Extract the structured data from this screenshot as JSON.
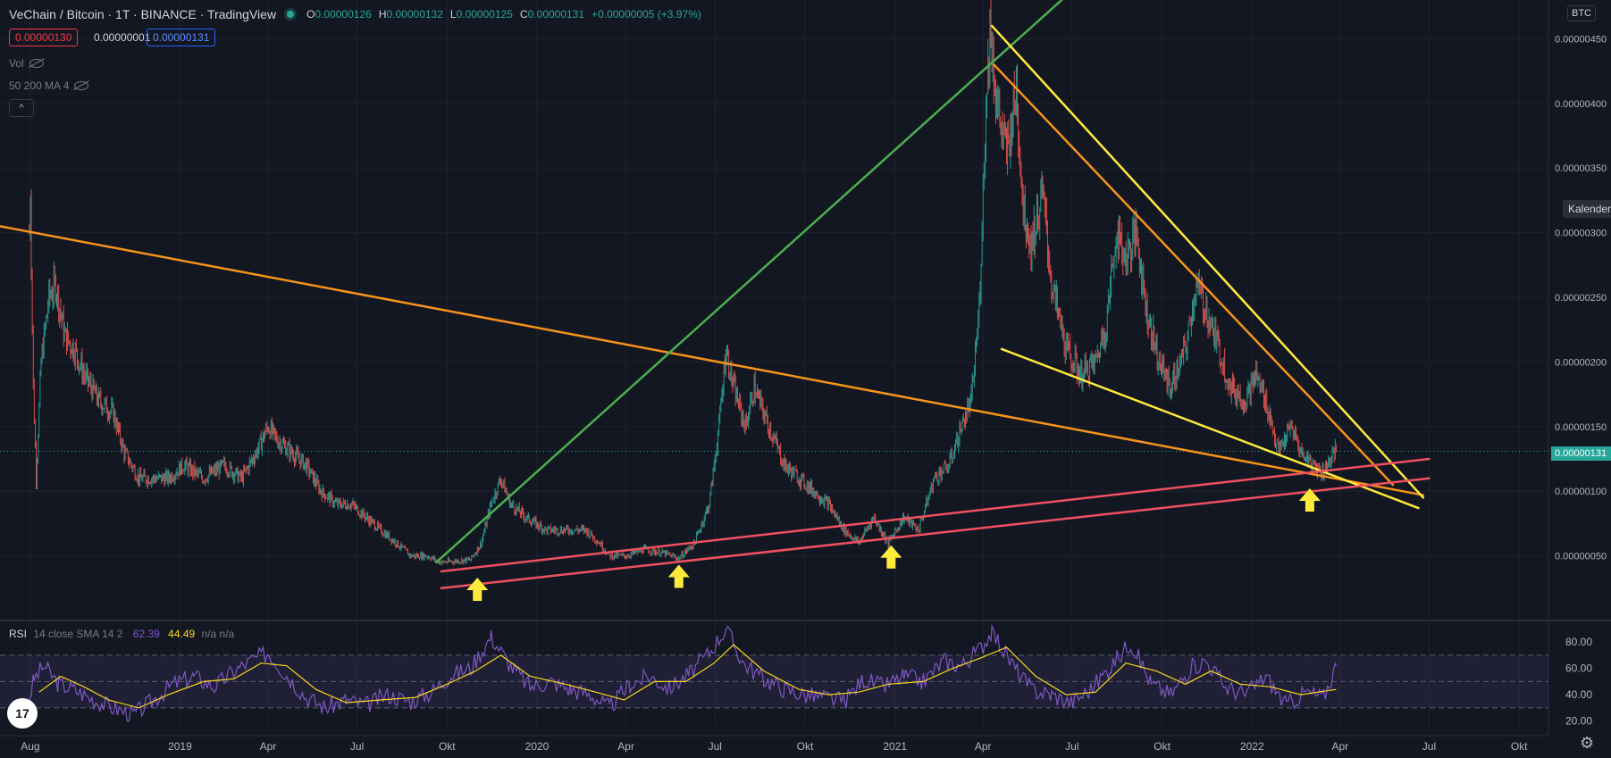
{
  "header": {
    "symbol": "VeChain / Bitcoin · 1T · BINANCE · TradingView",
    "open_label": "O",
    "open": "0.00000126",
    "high_label": "H",
    "high": "0.00000132",
    "low_label": "L",
    "low": "0.00000125",
    "close_label": "C",
    "close": "0.00000131",
    "change": "+0.00000005 (+3.97%)"
  },
  "quote": {
    "bid": "0.00000130",
    "spread": "0.00000001",
    "ask": "0.00000131"
  },
  "indicators": {
    "vol": "Vol",
    "ma": "50 200 MA 4",
    "collapse": "^"
  },
  "rsi_header": {
    "name": "RSI",
    "params": "14 close SMA 14 2",
    "rsi": "62.39",
    "ma": "44.49",
    "na": "n/a n/a"
  },
  "price_axis": {
    "currency": "BTC",
    "current": "0.00000131",
    "calendar_button": "Kalender"
  },
  "tv_logo": "17",
  "settings_icon": "gear-icon",
  "colors": {
    "up": "#26a69a",
    "down": "#ef5350",
    "orange": "#f7931a",
    "yellow": "#ffeb3b",
    "green": "#4caf50",
    "red": "#f05060",
    "rsi": "#7e57c2",
    "rsi_ma": "#f9d71c"
  },
  "chart_data": {
    "type": "line",
    "xlim": [
      "2018-07-01",
      "2022-10-31"
    ],
    "ylim": [
      0.0,
      4.8e-06
    ],
    "x_ticks": [
      {
        "date": "2018-08-01",
        "label": "Aug"
      },
      {
        "date": "2019-01-01",
        "label": "2019"
      },
      {
        "date": "2019-04-01",
        "label": "Apr"
      },
      {
        "date": "2019-07-01",
        "label": "Jul"
      },
      {
        "date": "2019-10-01",
        "label": "Okt"
      },
      {
        "date": "2020-01-01",
        "label": "2020"
      },
      {
        "date": "2020-04-01",
        "label": "Apr"
      },
      {
        "date": "2020-07-01",
        "label": "Jul"
      },
      {
        "date": "2020-10-01",
        "label": "Okt"
      },
      {
        "date": "2021-01-01",
        "label": "2021"
      },
      {
        "date": "2021-04-01",
        "label": "Apr"
      },
      {
        "date": "2021-07-01",
        "label": "Jul"
      },
      {
        "date": "2021-10-01",
        "label": "Okt"
      },
      {
        "date": "2022-01-01",
        "label": "2022"
      },
      {
        "date": "2022-04-01",
        "label": "Apr"
      },
      {
        "date": "2022-07-01",
        "label": "Jul"
      },
      {
        "date": "2022-10-01",
        "label": "Okt"
      }
    ],
    "y_ticks": [
      {
        "value": 4.5e-06,
        "label": "0.00000450"
      },
      {
        "value": 4e-06,
        "label": "0.00000400"
      },
      {
        "value": 3.5e-06,
        "label": "0.00000350"
      },
      {
        "value": 3e-06,
        "label": "0.00000300"
      },
      {
        "value": 2.5e-06,
        "label": "0.00000250"
      },
      {
        "value": 2e-06,
        "label": "0.00000200"
      },
      {
        "value": 1.5e-06,
        "label": "0.00000150"
      },
      {
        "value": 1e-06,
        "label": "0.00000100"
      },
      {
        "value": 5e-07,
        "label": "0.00000050"
      }
    ],
    "current_price": 1.31e-06,
    "price_series": [
      [
        "2018-07-31",
        3e-06
      ],
      [
        "2018-08-01",
        3.3e-06
      ],
      [
        "2018-08-04",
        1.8e-06
      ],
      [
        "2018-08-07",
        1.1e-06
      ],
      [
        "2018-08-12",
        2e-06
      ],
      [
        "2018-08-20",
        2.5e-06
      ],
      [
        "2018-08-27",
        2.6e-06
      ],
      [
        "2018-09-05",
        2.2e-06
      ],
      [
        "2018-09-15",
        2.1e-06
      ],
      [
        "2018-09-25",
        1.9e-06
      ],
      [
        "2018-10-10",
        1.7e-06
      ],
      [
        "2018-10-25",
        1.6e-06
      ],
      [
        "2018-11-05",
        1.3e-06
      ],
      [
        "2018-11-20",
        1.1e-06
      ],
      [
        "2018-12-05",
        1.1e-06
      ],
      [
        "2018-12-20",
        1.1e-06
      ],
      [
        "2019-01-05",
        1.2e-06
      ],
      [
        "2019-01-25",
        1.1e-06
      ],
      [
        "2019-02-15",
        1.2e-06
      ],
      [
        "2019-03-05",
        1.1e-06
      ],
      [
        "2019-03-20",
        1.3e-06
      ],
      [
        "2019-04-01",
        1.5e-06
      ],
      [
        "2019-04-10",
        1.4e-06
      ],
      [
        "2019-04-25",
        1.3e-06
      ],
      [
        "2019-05-10",
        1.2e-06
      ],
      [
        "2019-05-25",
        1e-06
      ],
      [
        "2019-06-10",
        9e-07
      ],
      [
        "2019-06-25",
        9e-07
      ],
      [
        "2019-07-10",
        8e-07
      ],
      [
        "2019-07-25",
        7e-07
      ],
      [
        "2019-08-10",
        6e-07
      ],
      [
        "2019-08-25",
        5e-07
      ],
      [
        "2019-09-10",
        5e-07
      ],
      [
        "2019-09-25",
        4.5e-07
      ],
      [
        "2019-10-10",
        4.6e-07
      ],
      [
        "2019-10-25",
        4.7e-07
      ],
      [
        "2019-11-05",
        6e-07
      ],
      [
        "2019-11-15",
        9e-07
      ],
      [
        "2019-11-25",
        1.1e-06
      ],
      [
        "2019-12-05",
        9e-07
      ],
      [
        "2019-12-20",
        8e-07
      ],
      [
        "2020-01-10",
        7e-07
      ],
      [
        "2020-02-01",
        7e-07
      ],
      [
        "2020-02-20",
        7e-07
      ],
      [
        "2020-03-05",
        6e-07
      ],
      [
        "2020-03-15",
        5e-07
      ],
      [
        "2020-04-01",
        5e-07
      ],
      [
        "2020-04-20",
        5.5e-07
      ],
      [
        "2020-05-10",
        5.2e-07
      ],
      [
        "2020-05-25",
        4.8e-07
      ],
      [
        "2020-06-10",
        6e-07
      ],
      [
        "2020-06-25",
        9e-07
      ],
      [
        "2020-07-05",
        1.5e-06
      ],
      [
        "2020-07-12",
        2.1e-06
      ],
      [
        "2020-07-20",
        1.8e-06
      ],
      [
        "2020-08-01",
        1.5e-06
      ],
      [
        "2020-08-10",
        1.8e-06
      ],
      [
        "2020-08-25",
        1.5e-06
      ],
      [
        "2020-09-10",
        1.2e-06
      ],
      [
        "2020-09-25",
        1.1e-06
      ],
      [
        "2020-10-10",
        1e-06
      ],
      [
        "2020-10-25",
        9e-07
      ],
      [
        "2020-11-10",
        7e-07
      ],
      [
        "2020-11-25",
        6e-07
      ],
      [
        "2020-12-10",
        8e-07
      ],
      [
        "2020-12-25",
        6e-07
      ],
      [
        "2021-01-10",
        8e-07
      ],
      [
        "2021-01-25",
        7e-07
      ],
      [
        "2021-02-10",
        1.1e-06
      ],
      [
        "2021-02-25",
        1.2e-06
      ],
      [
        "2021-03-10",
        1.5e-06
      ],
      [
        "2021-03-20",
        1.7e-06
      ],
      [
        "2021-03-28",
        2.4e-06
      ],
      [
        "2021-04-03",
        3.8e-06
      ],
      [
        "2021-04-08",
        4.6e-06
      ],
      [
        "2021-04-15",
        4e-06
      ],
      [
        "2021-04-25",
        3.6e-06
      ],
      [
        "2021-05-05",
        4.1e-06
      ],
      [
        "2021-05-12",
        3.2e-06
      ],
      [
        "2021-05-20",
        2.9e-06
      ],
      [
        "2021-06-01",
        3.3e-06
      ],
      [
        "2021-06-10",
        2.6e-06
      ],
      [
        "2021-06-25",
        2.1e-06
      ],
      [
        "2021-07-10",
        1.9e-06
      ],
      [
        "2021-07-25",
        2e-06
      ],
      [
        "2021-08-05",
        2.3e-06
      ],
      [
        "2021-08-15",
        3e-06
      ],
      [
        "2021-08-25",
        2.8e-06
      ],
      [
        "2021-09-05",
        3e-06
      ],
      [
        "2021-09-15",
        2.4e-06
      ],
      [
        "2021-09-28",
        2e-06
      ],
      [
        "2021-10-10",
        1.8e-06
      ],
      [
        "2021-10-25",
        2.1e-06
      ],
      [
        "2021-11-05",
        2.6e-06
      ],
      [
        "2021-11-15",
        2.4e-06
      ],
      [
        "2021-11-28",
        2.1e-06
      ],
      [
        "2021-12-10",
        1.8e-06
      ],
      [
        "2021-12-25",
        1.7e-06
      ],
      [
        "2022-01-05",
        1.9e-06
      ],
      [
        "2022-01-15",
        1.7e-06
      ],
      [
        "2022-01-28",
        1.3e-06
      ],
      [
        "2022-02-10",
        1.5e-06
      ],
      [
        "2022-02-20",
        1.3e-06
      ],
      [
        "2022-03-05",
        1.2e-06
      ],
      [
        "2022-03-15",
        1.15e-06
      ],
      [
        "2022-03-22",
        1.25e-06
      ],
      [
        "2022-03-28",
        1.31e-06
      ]
    ],
    "trendlines": [
      {
        "color": "orange",
        "from": [
          "2018-07-01",
          3.05e-06
        ],
        "to": [
          "2022-06-25",
          9.7e-07
        ]
      },
      {
        "color": "green",
        "from": [
          "2019-09-20",
          4.5e-07
        ],
        "to": [
          "2021-07-05",
          4.9e-06
        ]
      },
      {
        "color": "orange",
        "from": [
          "2021-04-12",
          4.3e-06
        ],
        "to": [
          "2022-05-25",
          1.05e-06
        ]
      },
      {
        "color": "yellow",
        "from": [
          "2021-04-10",
          4.6e-06
        ],
        "to": [
          "2022-06-25",
          9.5e-07
        ]
      },
      {
        "color": "yellow",
        "from": [
          "2021-04-20",
          2.1e-06
        ],
        "to": [
          "2022-06-20",
          8.7e-07
        ]
      },
      {
        "color": "red",
        "from": [
          "2019-09-25",
          3.8e-07
        ],
        "to": [
          "2022-07-01",
          1.25e-06
        ]
      },
      {
        "color": "red",
        "from": [
          "2019-09-25",
          2.5e-07
        ],
        "to": [
          "2022-07-01",
          1.1e-06
        ]
      }
    ],
    "arrows": [
      {
        "date": "2019-11-01",
        "value": 1.8e-07
      },
      {
        "date": "2020-05-25",
        "value": 2.8e-07
      },
      {
        "date": "2020-12-28",
        "value": 4.3e-07
      },
      {
        "date": "2022-03-01",
        "value": 8.7e-07
      }
    ],
    "rsi": {
      "ylim": [
        15,
        95
      ],
      "y_ticks": [
        {
          "value": 80,
          "label": "80.00"
        },
        {
          "value": 60,
          "label": "60.00"
        },
        {
          "value": 40,
          "label": "40.00"
        },
        {
          "value": 20,
          "label": "20.00"
        }
      ],
      "upper_band": 70,
      "mid_band": 50,
      "lower_band": 30,
      "rsi_series": [
        [
          "2018-07-31",
          38
        ],
        [
          "2018-08-05",
          52
        ],
        [
          "2018-08-15",
          62
        ],
        [
          "2018-08-30",
          48
        ],
        [
          "2018-09-15",
          44
        ],
        [
          "2018-10-05",
          36
        ],
        [
          "2018-10-25",
          30
        ],
        [
          "2018-11-15",
          25
        ],
        [
          "2018-12-05",
          36
        ],
        [
          "2018-12-25",
          48
        ],
        [
          "2019-01-15",
          54
        ],
        [
          "2019-02-05",
          46
        ],
        [
          "2019-02-25",
          58
        ],
        [
          "2019-03-15",
          66
        ],
        [
          "2019-04-01",
          72
        ],
        [
          "2019-04-20",
          55
        ],
        [
          "2019-05-10",
          38
        ],
        [
          "2019-05-30",
          30
        ],
        [
          "2019-06-20",
          36
        ],
        [
          "2019-07-10",
          32
        ],
        [
          "2019-08-01",
          40
        ],
        [
          "2019-08-25",
          35
        ],
        [
          "2019-09-15",
          42
        ],
        [
          "2019-10-05",
          55
        ],
        [
          "2019-10-25",
          60
        ],
        [
          "2019-11-15",
          84
        ],
        [
          "2019-12-05",
          62
        ],
        [
          "2019-12-25",
          46
        ],
        [
          "2020-01-15",
          50
        ],
        [
          "2020-02-05",
          44
        ],
        [
          "2020-02-25",
          40
        ],
        [
          "2020-03-15",
          30
        ],
        [
          "2020-04-05",
          48
        ],
        [
          "2020-04-25",
          54
        ],
        [
          "2020-05-15",
          45
        ],
        [
          "2020-06-05",
          56
        ],
        [
          "2020-06-25",
          72
        ],
        [
          "2020-07-12",
          90
        ],
        [
          "2020-07-30",
          64
        ],
        [
          "2020-08-20",
          52
        ],
        [
          "2020-09-10",
          44
        ],
        [
          "2020-09-30",
          40
        ],
        [
          "2020-10-20",
          38
        ],
        [
          "2020-11-10",
          35
        ],
        [
          "2020-11-30",
          52
        ],
        [
          "2020-12-20",
          46
        ],
        [
          "2021-01-10",
          54
        ],
        [
          "2021-01-30",
          50
        ],
        [
          "2021-02-20",
          66
        ],
        [
          "2021-03-10",
          62
        ],
        [
          "2021-03-30",
          76
        ],
        [
          "2021-04-10",
          88
        ],
        [
          "2021-04-30",
          64
        ],
        [
          "2021-05-20",
          44
        ],
        [
          "2021-06-10",
          40
        ],
        [
          "2021-06-30",
          34
        ],
        [
          "2021-07-20",
          44
        ],
        [
          "2021-08-10",
          62
        ],
        [
          "2021-08-30",
          80
        ],
        [
          "2021-09-20",
          48
        ],
        [
          "2021-10-10",
          40
        ],
        [
          "2021-10-30",
          60
        ],
        [
          "2021-11-15",
          66
        ],
        [
          "2021-12-05",
          46
        ],
        [
          "2021-12-25",
          40
        ],
        [
          "2022-01-15",
          54
        ],
        [
          "2022-02-05",
          32
        ],
        [
          "2022-02-25",
          42
        ],
        [
          "2022-03-15",
          38
        ],
        [
          "2022-03-28",
          62
        ]
      ],
      "ma_series": [
        [
          "2018-08-10",
          42
        ],
        [
          "2018-09-01",
          54
        ],
        [
          "2018-09-25",
          46
        ],
        [
          "2018-10-20",
          36
        ],
        [
          "2018-11-20",
          30
        ],
        [
          "2018-12-20",
          40
        ],
        [
          "2019-01-25",
          50
        ],
        [
          "2019-02-25",
          52
        ],
        [
          "2019-03-25",
          64
        ],
        [
          "2019-04-20",
          62
        ],
        [
          "2019-05-20",
          44
        ],
        [
          "2019-06-20",
          34
        ],
        [
          "2019-07-25",
          36
        ],
        [
          "2019-08-30",
          38
        ],
        [
          "2019-10-01",
          48
        ],
        [
          "2019-10-30",
          58
        ],
        [
          "2019-11-25",
          70
        ],
        [
          "2019-12-25",
          54
        ],
        [
          "2020-01-30",
          48
        ],
        [
          "2020-03-01",
          42
        ],
        [
          "2020-03-30",
          36
        ],
        [
          "2020-04-30",
          50
        ],
        [
          "2020-06-01",
          50
        ],
        [
          "2020-06-30",
          64
        ],
        [
          "2020-07-20",
          78
        ],
        [
          "2020-08-20",
          58
        ],
        [
          "2020-09-25",
          44
        ],
        [
          "2020-10-25",
          40
        ],
        [
          "2020-11-25",
          42
        ],
        [
          "2020-12-25",
          48
        ],
        [
          "2021-01-30",
          50
        ],
        [
          "2021-03-01",
          60
        ],
        [
          "2021-03-30",
          68
        ],
        [
          "2021-04-25",
          76
        ],
        [
          "2021-05-25",
          54
        ],
        [
          "2021-06-25",
          40
        ],
        [
          "2021-07-25",
          42
        ],
        [
          "2021-08-25",
          64
        ],
        [
          "2021-09-25",
          58
        ],
        [
          "2021-10-25",
          48
        ],
        [
          "2021-11-20",
          58
        ],
        [
          "2021-12-20",
          48
        ],
        [
          "2022-01-20",
          46
        ],
        [
          "2022-02-20",
          40
        ],
        [
          "2022-03-28",
          44
        ]
      ]
    }
  }
}
